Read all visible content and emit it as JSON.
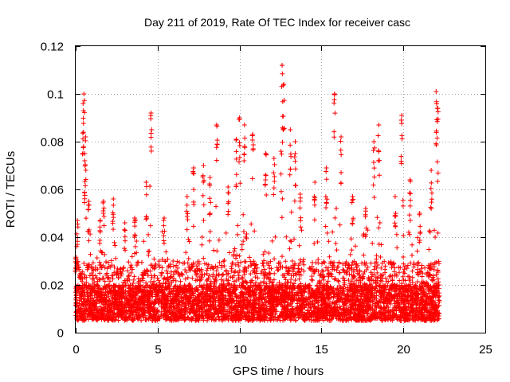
{
  "chart_data": {
    "type": "scatter",
    "title": "Day 211 of 2019, Rate Of TEC Index for receiver casc",
    "xlabel": "GPS time / hours",
    "ylabel": "ROTI / TECUs",
    "xlim": [
      0,
      25
    ],
    "ylim": [
      0,
      0.12
    ],
    "xticks": [
      0,
      5,
      10,
      15,
      20,
      25
    ],
    "yticks": [
      0,
      0.02,
      0.04,
      0.06,
      0.08,
      0.1,
      0.12
    ],
    "xtick_labels": [
      "0",
      "5",
      "10",
      "15",
      "20",
      "25"
    ],
    "ytick_labels": [
      "0",
      "0.02",
      "0.04",
      "0.06",
      "0.08",
      "0.1",
      "0.12"
    ],
    "grid": true,
    "marker": "plus",
    "series": [
      {
        "name": "ROTI",
        "color": "#ff0000",
        "data_x_range": [
          0,
          22.2
        ],
        "dense_band": [
          0.005,
          0.03
        ],
        "peaks": [
          [
            0.0,
            0.031
          ],
          [
            0.1,
            0.047
          ],
          [
            0.45,
            0.096
          ],
          [
            0.5,
            0.1
          ],
          [
            0.55,
            0.072
          ],
          [
            0.6,
            0.082
          ],
          [
            0.8,
            0.055
          ],
          [
            1.5,
            0.047
          ],
          [
            1.7,
            0.055
          ],
          [
            2.3,
            0.056
          ],
          [
            3.0,
            0.046
          ],
          [
            3.6,
            0.048
          ],
          [
            4.3,
            0.063
          ],
          [
            4.6,
            0.092
          ],
          [
            5.4,
            0.048
          ],
          [
            6.8,
            0.057
          ],
          [
            7.2,
            0.069
          ],
          [
            7.8,
            0.07
          ],
          [
            8.2,
            0.065
          ],
          [
            8.6,
            0.087
          ],
          [
            9.3,
            0.061
          ],
          [
            9.8,
            0.081
          ],
          [
            10.0,
            0.09
          ],
          [
            10.3,
            0.087
          ],
          [
            10.8,
            0.083
          ],
          [
            11.6,
            0.075
          ],
          [
            12.1,
            0.073
          ],
          [
            12.6,
            0.112
          ],
          [
            12.7,
            0.104
          ],
          [
            13.1,
            0.085
          ],
          [
            13.4,
            0.08
          ],
          [
            13.7,
            0.058
          ],
          [
            14.6,
            0.063
          ],
          [
            15.3,
            0.069
          ],
          [
            15.8,
            0.1
          ],
          [
            16.2,
            0.082
          ],
          [
            16.9,
            0.057
          ],
          [
            17.7,
            0.052
          ],
          [
            18.2,
            0.08
          ],
          [
            18.5,
            0.087
          ],
          [
            19.5,
            0.057
          ],
          [
            19.9,
            0.091
          ],
          [
            20.4,
            0.064
          ],
          [
            21.0,
            0.05
          ],
          [
            21.7,
            0.068
          ],
          [
            22.0,
            0.101
          ],
          [
            22.1,
            0.094
          ]
        ]
      }
    ]
  }
}
